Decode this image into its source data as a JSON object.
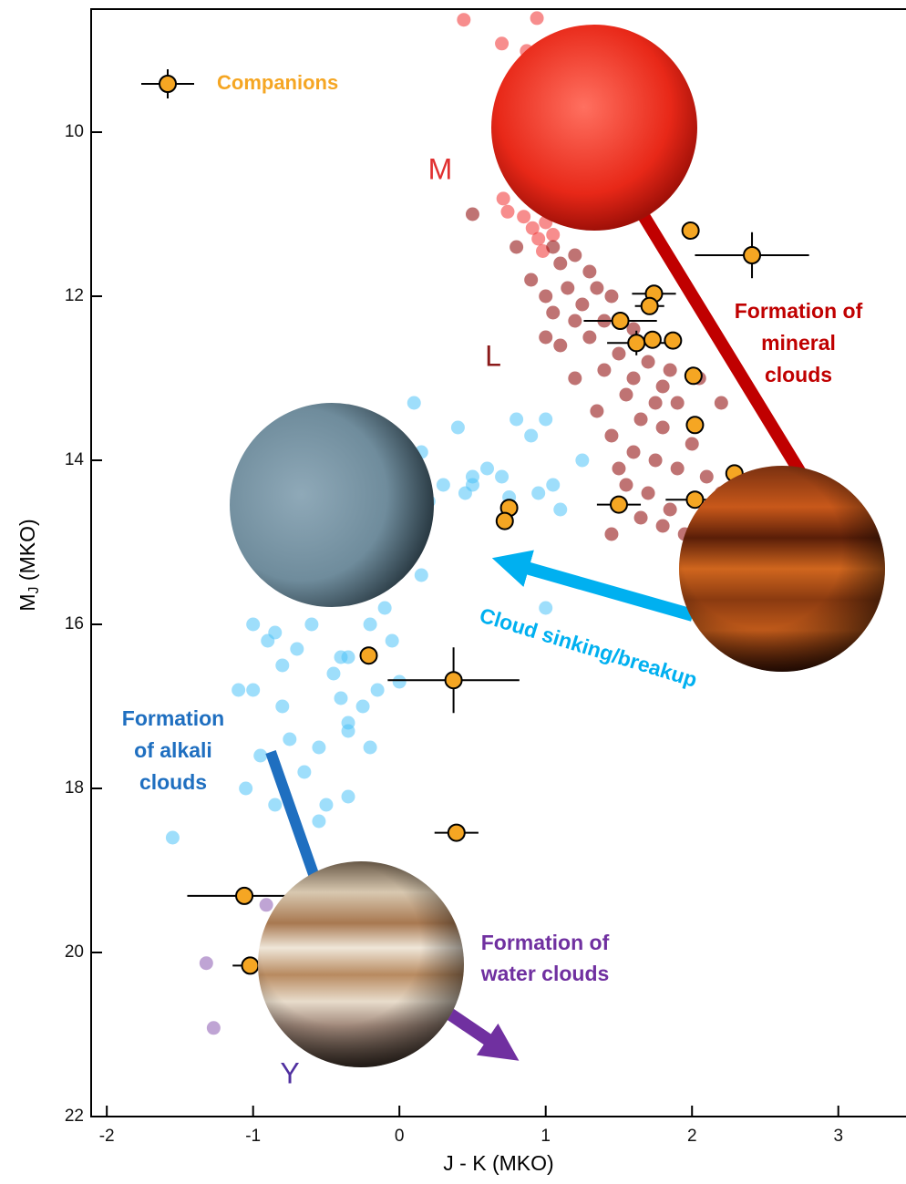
{
  "chart_data": {
    "type": "scatter",
    "xlabel": "J - K (MKO)",
    "ylabel": {
      "main": "M",
      "sub": "J",
      "rest": " (MKO)"
    },
    "xlim": [
      -2.107,
      3.5
    ],
    "ylim": [
      8.5,
      22
    ],
    "y_inverted": true,
    "xticks": [
      -2,
      -1,
      0,
      1,
      2,
      3
    ],
    "yticks": [
      10,
      12,
      14,
      16,
      18,
      20,
      22
    ],
    "class_labels": [
      "M",
      "L",
      "Y"
    ],
    "annotations": [
      {
        "lines": [
          "Formation of",
          "mineral",
          "clouds"
        ],
        "color": "#c00000"
      },
      {
        "lines": [
          "Cloud sinking/breakup"
        ],
        "color": "#00b0f0"
      },
      {
        "lines": [
          "Formation",
          "of alkali",
          "clouds"
        ],
        "color": "#1f6fc0"
      },
      {
        "lines": [
          "Formation of",
          "water clouds"
        ],
        "color": "#7030a0"
      }
    ],
    "series": [
      {
        "color": "#f03030",
        "x": [
          0.44,
          0.94,
          0.7,
          0.87,
          0.71,
          0.74,
          0.85,
          0.91,
          0.95,
          1.0,
          1.05,
          0.98
        ],
        "values": [
          8.63,
          8.61,
          8.92,
          9.01,
          10.81,
          10.97,
          11.03,
          11.17,
          11.3,
          11.1,
          11.25,
          11.45
        ]
      },
      {
        "color": "#8b0000",
        "x": [
          0.5,
          1.05,
          1.1,
          1.2,
          1.3,
          0.9,
          1.0,
          1.15,
          1.25,
          1.35,
          1.45,
          1.4,
          1.2,
          1.05,
          1.3,
          1.5,
          1.4,
          1.6,
          1.7,
          1.55,
          1.8,
          1.9,
          1.65,
          1.8,
          2.0,
          1.45,
          1.6,
          1.75,
          1.9,
          2.1,
          1.55,
          1.7,
          1.85,
          2.2,
          1.65,
          1.8,
          1.45,
          1.95,
          2.3,
          1.1,
          1.0,
          1.2,
          2.2,
          1.6,
          1.35,
          2.05,
          1.75,
          2.15,
          1.5,
          0.8,
          1.85
        ],
        "values": [
          11.0,
          11.4,
          11.6,
          11.5,
          11.7,
          11.8,
          12.0,
          11.9,
          12.1,
          11.9,
          12.0,
          12.3,
          12.3,
          12.2,
          12.5,
          12.7,
          12.9,
          13.0,
          12.8,
          13.2,
          13.1,
          13.3,
          13.5,
          13.6,
          13.8,
          13.7,
          13.9,
          14.0,
          14.1,
          14.2,
          14.3,
          14.4,
          14.6,
          14.4,
          14.7,
          14.8,
          14.9,
          14.9,
          14.7,
          12.6,
          12.5,
          13.0,
          13.3,
          12.4,
          13.4,
          13.0,
          13.3,
          14.9,
          14.1,
          11.4,
          12.9
        ]
      },
      {
        "color": "#4fc3f7",
        "x": [
          0.1,
          0.4,
          0.8,
          1.0,
          0.9,
          1.25,
          1.05,
          0.6,
          0.5,
          0.3,
          0.2,
          0.45,
          0.7,
          0.95,
          1.1,
          0.15,
          0.0,
          -0.1,
          0.0,
          -0.2,
          -0.3,
          -0.1,
          0.15,
          -0.05,
          -0.2,
          -0.5,
          -0.6,
          -0.7,
          -0.9,
          -1.0,
          -0.8,
          -0.85,
          -0.45,
          -0.35,
          -0.15,
          0.0,
          -0.25,
          -0.4,
          -0.35,
          -0.55,
          -0.75,
          -0.8,
          -0.2,
          -0.65,
          -0.35,
          -0.5,
          -0.85,
          -1.05,
          -0.95,
          -1.55,
          -0.55,
          1.0,
          0.5,
          0.75,
          -0.6,
          -1.0,
          -0.35,
          -0.4,
          -1.1
        ],
        "values": [
          13.3,
          13.6,
          13.5,
          13.5,
          13.7,
          14.0,
          14.3,
          14.1,
          14.3,
          14.3,
          14.5,
          14.4,
          14.2,
          14.4,
          14.6,
          13.9,
          14.0,
          14.8,
          15.3,
          15.1,
          15.6,
          15.8,
          15.4,
          16.2,
          16.0,
          15.7,
          16.0,
          16.3,
          16.2,
          16.0,
          16.5,
          16.1,
          16.6,
          16.4,
          16.8,
          16.7,
          17.0,
          16.9,
          17.3,
          17.5,
          17.4,
          17.0,
          17.5,
          17.8,
          18.1,
          18.2,
          18.2,
          18.0,
          17.6,
          18.6,
          18.4,
          15.8,
          14.2,
          14.45,
          15.2,
          16.8,
          17.2,
          16.4,
          16.8
        ]
      },
      {
        "color": "#8a5ab0",
        "x": [
          -1.32,
          -1.27,
          -0.91
        ],
        "values": [
          20.13,
          20.92,
          19.42
        ]
      },
      {
        "name": "Companions",
        "color": "#f5a623",
        "x": [
          1.99,
          2.41,
          1.74,
          1.71,
          1.51,
          1.62,
          1.73,
          1.87,
          2.01,
          2.02,
          2.29,
          2.02,
          1.5,
          0.75,
          0.72,
          -0.21,
          0.37,
          0.39,
          -1.06,
          -1.02
        ],
        "values": [
          11.2,
          11.5,
          11.97,
          12.12,
          12.3,
          12.57,
          12.53,
          12.54,
          12.97,
          13.57,
          14.16,
          14.48,
          14.54,
          14.58,
          14.74,
          16.38,
          16.68,
          18.54,
          19.31,
          20.16
        ],
        "xerr": [
          0.05,
          0.39,
          0.15,
          0.1,
          0.25,
          0.2,
          0.05,
          0.05,
          0.03,
          0.03,
          0.05,
          0.2,
          0.15,
          0.03,
          0.03,
          0.03,
          0.45,
          0.15,
          0.39,
          0.12
        ],
        "yerr": [
          0.05,
          0.28,
          0.05,
          0.05,
          0.1,
          0.15,
          0.05,
          0.05,
          0.03,
          0.03,
          0.05,
          0.1,
          0.1,
          0.03,
          0.03,
          0.03,
          0.4,
          0.05,
          0.1,
          0.05
        ]
      }
    ]
  }
}
